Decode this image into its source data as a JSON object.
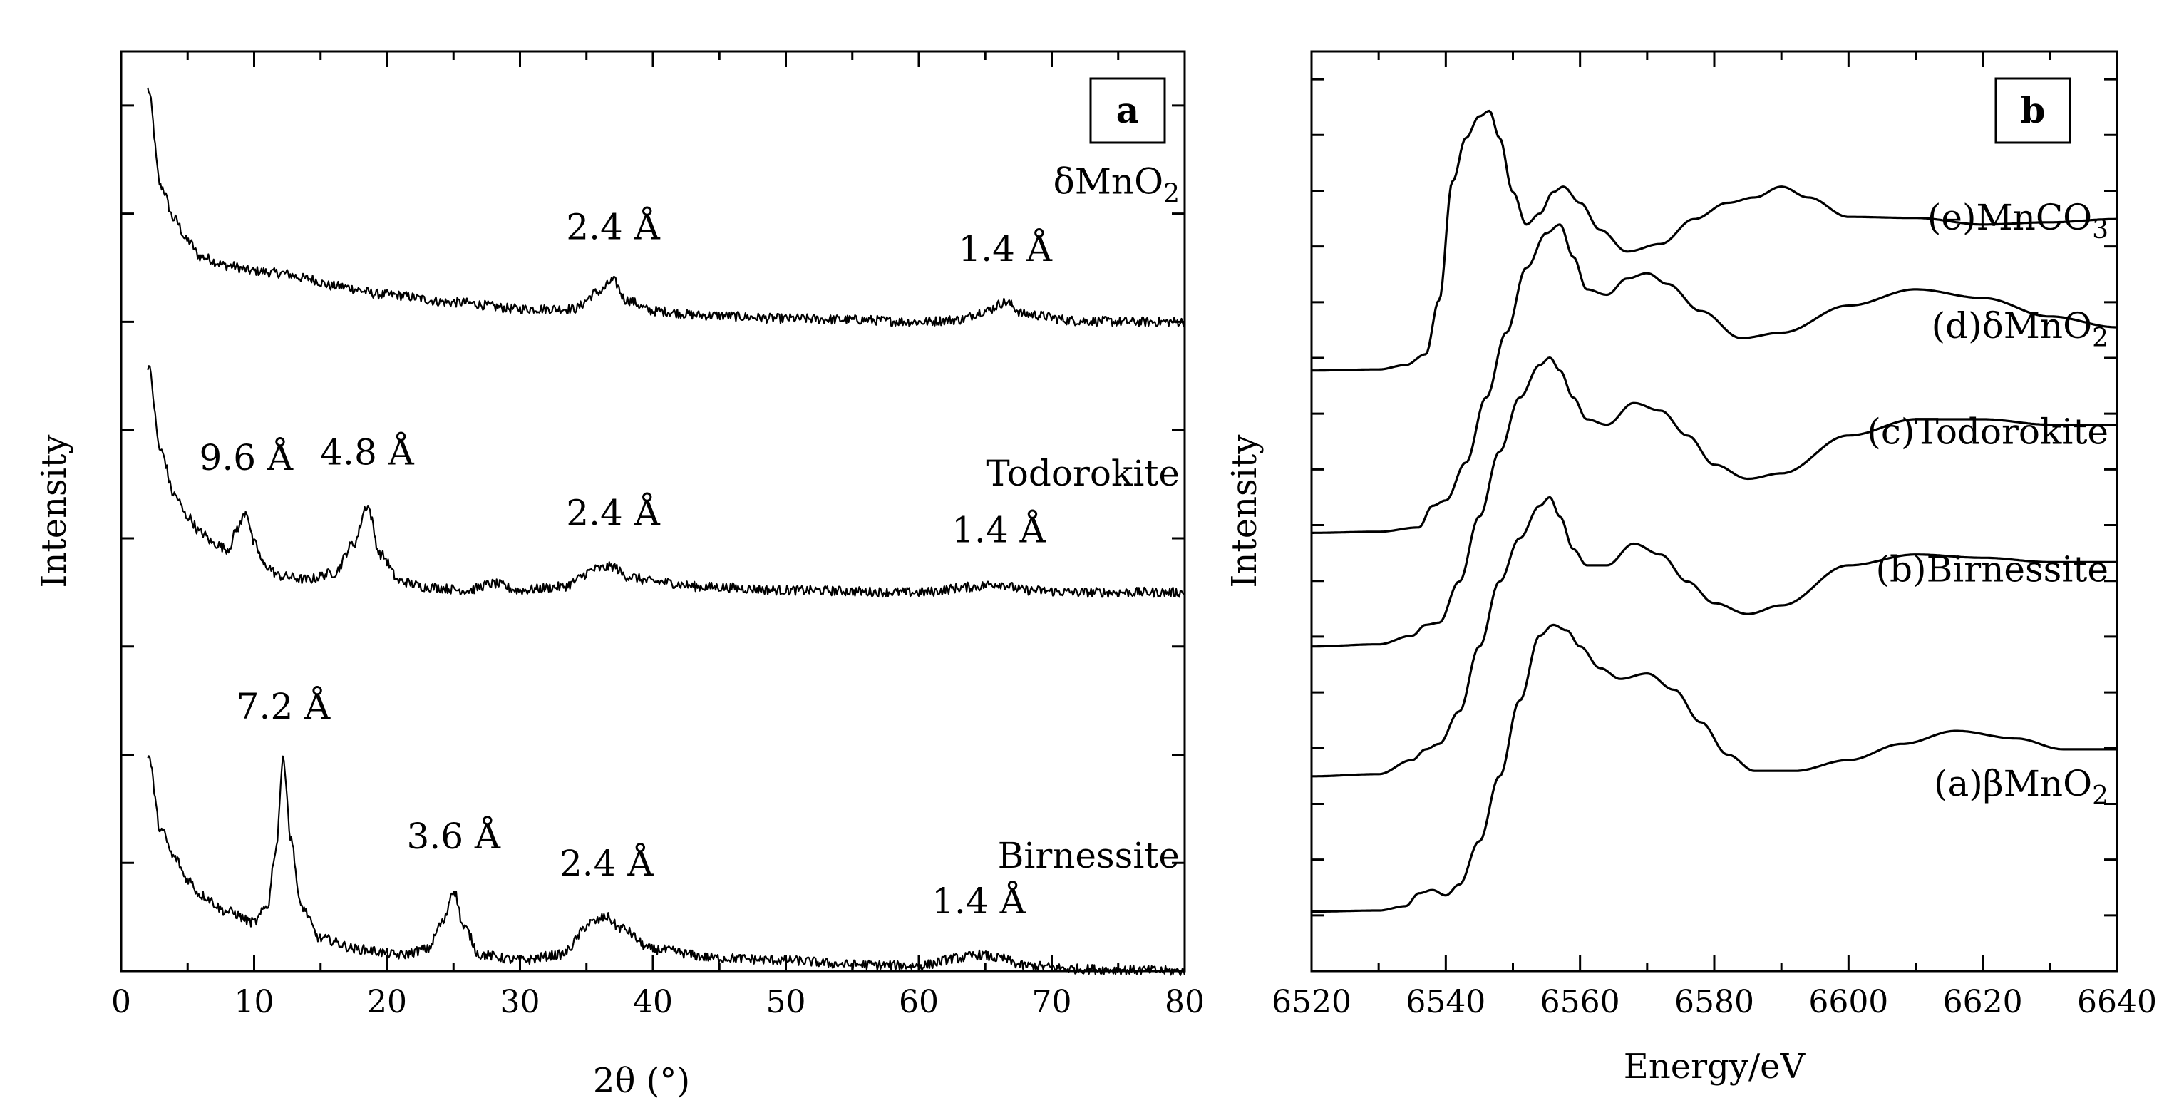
{
  "chart_data": [
    {
      "panel": "a",
      "type": "line",
      "xlabel": "2θ (°)",
      "ylabel": "Intensity",
      "xlim": [
        0,
        80
      ],
      "ylim": [
        0,
        8.5
      ],
      "xticks": [
        "0",
        "10",
        "20",
        "30",
        "40",
        "50",
        "60",
        "70",
        "80"
      ],
      "y_minor_ticks": 8,
      "series": [
        {
          "name": "δMnO2",
          "label_main": "δMnO",
          "label_sub": "2",
          "x": [
            2,
            3,
            4,
            5,
            6,
            8,
            10,
            12,
            14,
            16,
            20,
            25,
            30,
            34,
            36,
            37,
            38,
            40,
            44,
            50,
            55,
            60,
            63,
            65,
            66.5,
            68,
            72,
            76,
            80
          ],
          "y": [
            8.15,
            7.25,
            6.95,
            6.75,
            6.6,
            6.52,
            6.47,
            6.45,
            6.4,
            6.33,
            6.25,
            6.18,
            6.12,
            6.12,
            6.28,
            6.38,
            6.2,
            6.1,
            6.06,
            6.03,
            6.02,
            6.0,
            6.02,
            6.1,
            6.18,
            6.07,
            6.01,
            6.0,
            6.0
          ],
          "peaks": [
            {
              "label": "2.4 Å",
              "x": 37
            },
            {
              "label": "1.4 Å",
              "x": 66.5
            }
          ]
        },
        {
          "name": "Todorokite",
          "label_main": "Todorokite",
          "label_sub": "",
          "x": [
            2,
            3,
            4,
            5,
            6,
            7,
            8,
            8.8,
            9.4,
            10,
            10.8,
            12,
            14,
            16,
            17.5,
            18.5,
            19.5,
            21,
            23,
            26,
            28,
            30,
            33,
            36,
            37,
            38,
            40,
            44,
            50,
            60,
            64,
            66,
            68,
            72,
            80
          ],
          "y": [
            5.6,
            4.8,
            4.4,
            4.2,
            4.05,
            3.95,
            3.9,
            4.1,
            4.25,
            3.95,
            3.75,
            3.65,
            3.62,
            3.68,
            3.95,
            4.3,
            3.85,
            3.6,
            3.55,
            3.52,
            3.58,
            3.52,
            3.55,
            3.72,
            3.74,
            3.65,
            3.6,
            3.55,
            3.52,
            3.5,
            3.55,
            3.58,
            3.52,
            3.5,
            3.5
          ],
          "peaks": [
            {
              "label": "9.6 Å",
              "x": 9.4
            },
            {
              "label": "4.8 Å",
              "x": 18.5
            },
            {
              "label": "2.4 Å",
              "x": 37
            },
            {
              "label": "1.4 Å",
              "x": 66
            }
          ]
        },
        {
          "name": "Birnessite",
          "label_main": "Birnessite",
          "label_sub": "",
          "x": [
            2,
            3,
            4,
            5,
            6,
            8,
            10,
            11,
            11.6,
            12.2,
            12.8,
            13.5,
            15,
            18,
            21,
            23,
            24.2,
            25,
            25.8,
            27,
            30,
            33,
            35.5,
            36.5,
            37.5,
            40,
            45,
            50,
            55,
            60,
            63,
            64.5,
            66,
            68,
            72,
            76,
            80
          ],
          "y": [
            2.0,
            1.3,
            1.05,
            0.85,
            0.7,
            0.55,
            0.45,
            0.6,
            1.1,
            1.95,
            1.2,
            0.6,
            0.3,
            0.2,
            0.15,
            0.2,
            0.45,
            0.75,
            0.4,
            0.15,
            0.1,
            0.15,
            0.45,
            0.5,
            0.4,
            0.2,
            0.12,
            0.1,
            0.06,
            0.05,
            0.12,
            0.15,
            0.12,
            0.05,
            0.02,
            0.01,
            0.0
          ],
          "peaks": [
            {
              "label": "7.2 Å",
              "x": 12.2
            },
            {
              "label": "3.6 Å",
              "x": 25
            },
            {
              "label": "2.4 Å",
              "x": 36.5
            },
            {
              "label": "1.4 Å",
              "x": 64.5
            }
          ]
        }
      ]
    },
    {
      "panel": "b",
      "type": "line",
      "xlabel": "Energy/eV",
      "ylabel": "Intensity",
      "xlim": [
        6520,
        6640
      ],
      "ylim": [
        0,
        8.5
      ],
      "xticks": [
        "6520",
        "6540",
        "6560",
        "6580",
        "6600",
        "6620",
        "6640"
      ],
      "y_minor_ticks": 16,
      "series": [
        {
          "name": "(e)MnCO3",
          "label_main": "(e)MnCO",
          "label_sub": "3",
          "x": [
            6520,
            6530,
            6534,
            6537,
            6539,
            6541,
            6543,
            6545,
            6546.5,
            6548,
            6550,
            6552,
            6554,
            6556,
            6557.5,
            6560,
            6563,
            6567,
            6572,
            6577,
            6582,
            6586,
            6590,
            6594,
            6600,
            6610,
            6620,
            6630,
            6640
          ],
          "y": [
            5.55,
            5.56,
            5.6,
            5.7,
            6.2,
            7.3,
            7.7,
            7.9,
            7.95,
            7.7,
            7.2,
            6.9,
            7.0,
            7.2,
            7.25,
            7.1,
            6.85,
            6.65,
            6.72,
            6.95,
            7.1,
            7.15,
            7.25,
            7.15,
            6.97,
            6.96,
            6.9,
            6.92,
            6.95
          ],
          "label_y": 6.95
        },
        {
          "name": "(d)δMnO2",
          "label_main": "(d)δMnO",
          "label_sub": "2",
          "x": [
            6520,
            6530,
            6536,
            6538,
            6540,
            6543,
            6546,
            6549,
            6552,
            6555,
            6557,
            6559,
            6561,
            6564,
            6567,
            6570,
            6573,
            6578,
            6584,
            6590,
            6600,
            6610,
            6620,
            6630,
            6640
          ],
          "y": [
            4.05,
            4.06,
            4.1,
            4.3,
            4.35,
            4.7,
            5.3,
            5.9,
            6.5,
            6.82,
            6.9,
            6.6,
            6.3,
            6.25,
            6.4,
            6.45,
            6.35,
            6.1,
            5.85,
            5.9,
            6.15,
            6.3,
            6.22,
            6.05,
            5.95
          ],
          "label_y": 5.95
        },
        {
          "name": "(c)Todorokite",
          "label_main": "(c)Todorokite",
          "label_sub": "",
          "x": [
            6520,
            6530,
            6535,
            6537,
            6539,
            6542,
            6545,
            6548,
            6551,
            6554,
            6555.5,
            6557,
            6559,
            6561,
            6564,
            6568,
            6572,
            6576,
            6580,
            6585,
            6590,
            6600,
            6610,
            6620,
            6630,
            6640
          ],
          "y": [
            3.0,
            3.02,
            3.1,
            3.2,
            3.22,
            3.6,
            4.2,
            4.8,
            5.3,
            5.6,
            5.67,
            5.55,
            5.3,
            5.1,
            5.05,
            5.25,
            5.18,
            4.95,
            4.68,
            4.55,
            4.6,
            4.95,
            5.1,
            5.1,
            5.05,
            5.05
          ],
          "label_y": 4.97
        },
        {
          "name": "(b)Birnessite",
          "label_main": "(b)Birnessite",
          "label_sub": "",
          "x": [
            6520,
            6530,
            6535,
            6537,
            6539,
            6542,
            6545,
            6548,
            6551,
            6554,
            6555.5,
            6557,
            6559,
            6561,
            6564,
            6568,
            6572,
            6576,
            6580,
            6585,
            6590,
            6600,
            6610,
            6620,
            6630,
            6640
          ],
          "y": [
            1.8,
            1.82,
            1.95,
            2.05,
            2.1,
            2.4,
            3.0,
            3.6,
            4.0,
            4.3,
            4.38,
            4.2,
            3.9,
            3.75,
            3.75,
            3.95,
            3.85,
            3.6,
            3.4,
            3.3,
            3.38,
            3.75,
            3.85,
            3.82,
            3.78,
            3.78
          ],
          "label_y": 3.7
        },
        {
          "name": "(a)βMnO2",
          "label_main": "(a)βMnO",
          "label_sub": "2",
          "x": [
            6520,
            6530,
            6534,
            6536,
            6538,
            6540,
            6542,
            6545,
            6548,
            6551,
            6554,
            6556,
            6558,
            6560,
            6563,
            6566,
            6570,
            6574,
            6578,
            6582,
            6586,
            6592,
            6600,
            6608,
            6616,
            6625,
            6632,
            6640
          ],
          "y": [
            0.55,
            0.56,
            0.6,
            0.72,
            0.75,
            0.7,
            0.8,
            1.2,
            1.8,
            2.5,
            3.1,
            3.2,
            3.15,
            3.0,
            2.8,
            2.7,
            2.75,
            2.6,
            2.3,
            2.0,
            1.85,
            1.85,
            1.95,
            2.1,
            2.22,
            2.15,
            2.05,
            2.05
          ],
          "label_y": 1.72
        }
      ]
    }
  ],
  "panels": {
    "a": {
      "tag": "a"
    },
    "b": {
      "tag": "b"
    }
  }
}
